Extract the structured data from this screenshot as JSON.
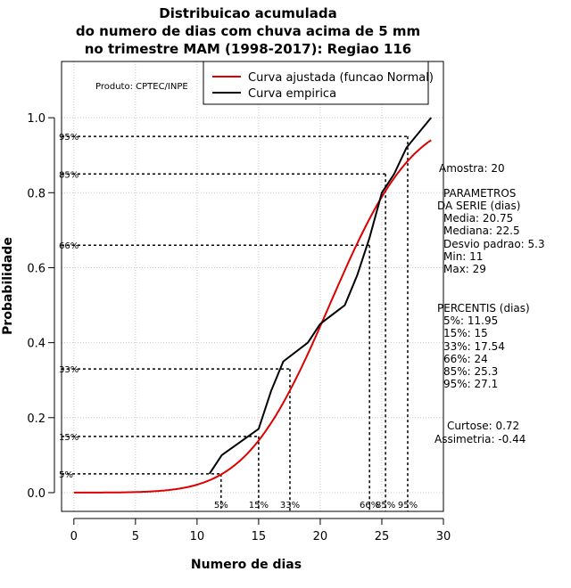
{
  "chart_data": {
    "type": "line",
    "title": [
      "Distribuicao acumulada",
      "do numero de dias com chuva acima de 5 mm",
      "no trimestre MAM (1998-2017): Regiao 116"
    ],
    "xlabel": "Numero de dias",
    "ylabel": "Probabilidade",
    "xlim": [
      -1,
      30
    ],
    "ylim": [
      -0.05,
      1.15
    ],
    "xticks": [
      0,
      5,
      10,
      15,
      20,
      25,
      30
    ],
    "yticks": [
      0.0,
      0.2,
      0.4,
      0.6,
      0.8,
      1.0
    ],
    "ytick_labels": [
      "0.0",
      "0.2",
      "0.4",
      "0.6",
      "0.8",
      "1.0"
    ],
    "grid": true,
    "credit": "Produto: CPTEC/INPE",
    "legend": {
      "position": "top-right",
      "entries": [
        {
          "label": "Curva ajustada (funcao Normal)",
          "color": "#dd0000"
        },
        {
          "label": "Curva empirica",
          "color": "#000000"
        }
      ]
    },
    "series": [
      {
        "name": "Curva ajustada (funcao Normal)",
        "color": "#dd0000",
        "kind": "normal_cdf",
        "mean": 20.75,
        "sd": 5.3,
        "x_from": 0,
        "x_to": 29
      },
      {
        "name": "Curva empirica",
        "color": "#000000",
        "x": [
          11,
          12,
          15,
          16,
          17,
          19,
          20,
          22,
          23,
          24,
          25,
          26,
          27,
          29
        ],
        "y": [
          0.05,
          0.1,
          0.17,
          0.27,
          0.35,
          0.4,
          0.45,
          0.5,
          0.58,
          0.68,
          0.8,
          0.85,
          0.92,
          1.0
        ]
      }
    ],
    "percentiles": [
      {
        "label": "5%",
        "x": 11.95,
        "y": 0.05
      },
      {
        "label": "15%",
        "x": 15,
        "y": 0.15
      },
      {
        "label": "33%",
        "x": 17.54,
        "y": 0.33
      },
      {
        "label": "66%",
        "x": 24,
        "y": 0.66
      },
      {
        "label": "85%",
        "x": 25.3,
        "y": 0.85
      },
      {
        "label": "95%",
        "x": 27.1,
        "y": 0.95
      }
    ],
    "annotations": {
      "sample": "Amostra: 20",
      "params_title": [
        "PARAMETROS",
        "DA SERIE (dias)"
      ],
      "params": [
        "Media: 20.75",
        "Mediana: 22.5",
        "Desvio padrao: 5.3",
        "Min: 11",
        "Max: 29"
      ],
      "percentis_title": "PERCENTIS (dias)",
      "percentis": [
        "5%: 11.95",
        "15%: 15",
        "33%: 17.54",
        "66%: 24",
        "85%: 25.3",
        "95%: 27.1"
      ],
      "curtose": "Curtose: 0.72",
      "assimetria": "Assimetria: -0.44"
    }
  }
}
